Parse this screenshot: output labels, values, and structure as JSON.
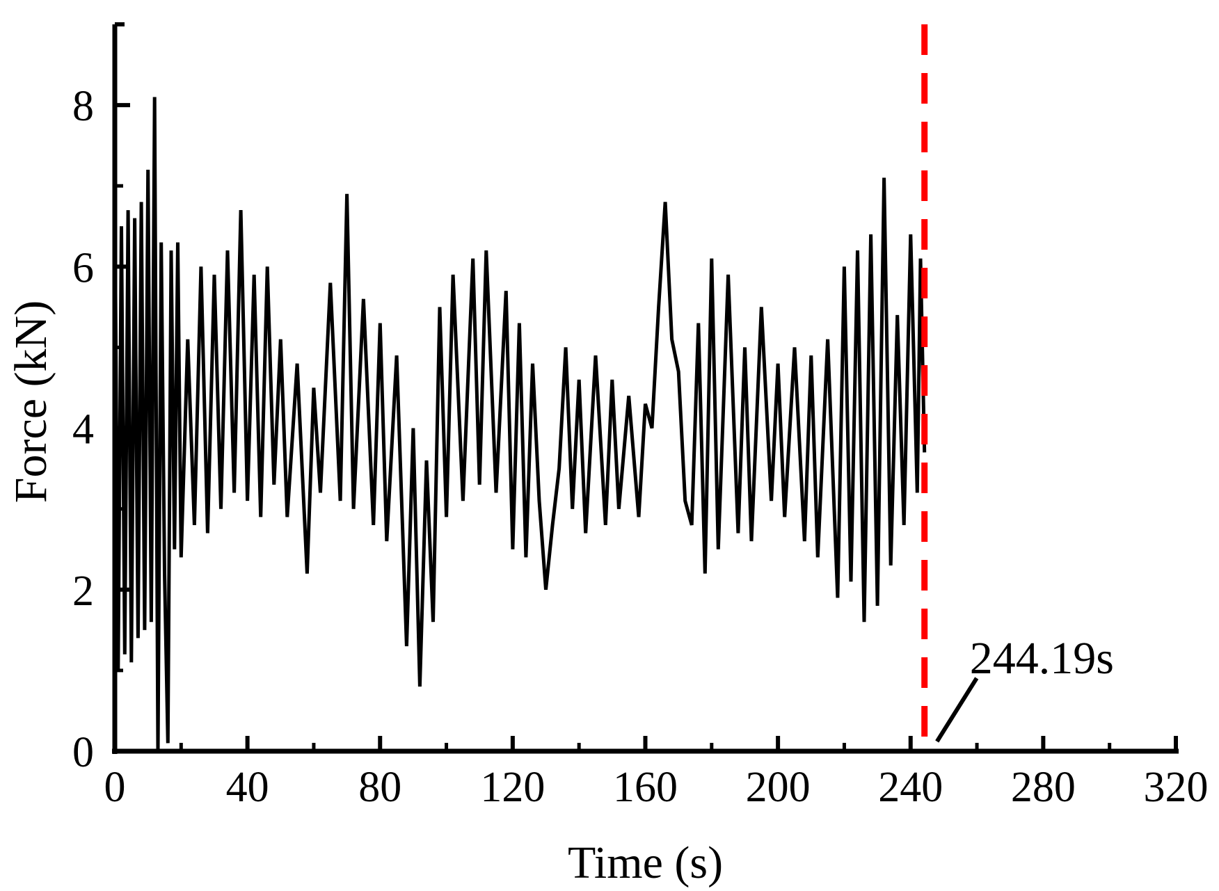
{
  "chart_data": {
    "type": "line",
    "xlabel": "Time (s)",
    "ylabel": "Force (kN)",
    "xlim": [
      0,
      320
    ],
    "ylim": [
      0,
      9
    ],
    "x_ticks": [
      0,
      40,
      80,
      120,
      160,
      200,
      240,
      280,
      320
    ],
    "y_ticks": [
      0,
      2,
      4,
      6,
      8
    ],
    "grid": false,
    "legend": "none",
    "line_color": "#000000",
    "marker_color": "#ff0000",
    "series": [
      {
        "x": [
          0,
          1,
          2,
          3,
          4,
          5,
          6,
          7,
          8,
          9,
          10,
          11,
          12,
          13,
          14,
          15,
          16,
          17,
          18,
          19,
          20,
          22,
          24,
          26,
          28,
          30,
          32,
          34,
          36,
          38,
          40,
          42,
          44,
          46,
          48,
          50,
          52,
          55,
          58,
          60,
          62,
          65,
          68,
          70,
          72,
          75,
          78,
          80,
          82,
          85,
          88,
          90,
          92,
          94,
          96,
          98,
          100,
          102,
          105,
          108,
          110,
          112,
          115,
          118,
          120,
          122,
          124,
          126,
          128,
          130,
          132,
          134,
          136,
          138,
          140,
          142,
          145,
          148,
          150,
          152,
          155,
          158,
          160,
          162,
          164,
          166,
          168,
          170,
          172,
          174,
          176,
          178,
          180,
          182,
          185,
          188,
          190,
          192,
          195,
          198,
          200,
          202,
          205,
          208,
          210,
          212,
          215,
          218,
          220,
          222,
          224,
          226,
          228,
          230,
          232,
          234,
          236,
          238,
          240,
          242,
          243,
          244.19
        ],
        "y": [
          6.9,
          1.0,
          6.5,
          1.2,
          6.7,
          1.1,
          6.6,
          1.4,
          6.8,
          1.5,
          7.2,
          1.6,
          8.1,
          0.0,
          6.3,
          2.2,
          0.1,
          6.2,
          2.5,
          6.3,
          2.4,
          5.1,
          2.8,
          6.0,
          2.7,
          5.9,
          3.0,
          6.2,
          3.2,
          6.7,
          3.1,
          5.9,
          2.9,
          6.0,
          3.3,
          5.1,
          2.9,
          4.8,
          2.2,
          4.5,
          3.2,
          5.8,
          3.1,
          6.9,
          3.0,
          5.6,
          2.8,
          5.3,
          2.6,
          4.9,
          1.3,
          4.0,
          0.8,
          3.6,
          1.6,
          5.5,
          2.9,
          5.9,
          3.1,
          6.1,
          3.3,
          6.2,
          3.2,
          5.7,
          2.5,
          5.3,
          2.4,
          4.8,
          3.1,
          2.0,
          2.8,
          3.5,
          5.0,
          3.0,
          4.6,
          2.7,
          4.9,
          2.8,
          4.6,
          3.0,
          4.4,
          2.9,
          4.3,
          4.0,
          5.5,
          6.8,
          5.1,
          4.7,
          3.1,
          2.8,
          5.3,
          2.2,
          6.1,
          2.5,
          5.9,
          2.7,
          5.0,
          2.6,
          5.5,
          3.1,
          4.8,
          2.9,
          5.0,
          2.6,
          4.9,
          2.4,
          5.1,
          1.9,
          6.0,
          2.1,
          6.2,
          1.6,
          6.4,
          1.8,
          7.1,
          2.3,
          5.4,
          2.8,
          6.4,
          3.2,
          6.1,
          3.7
        ]
      }
    ],
    "annotation": {
      "text": "244.19s",
      "x": 244.19
    }
  }
}
